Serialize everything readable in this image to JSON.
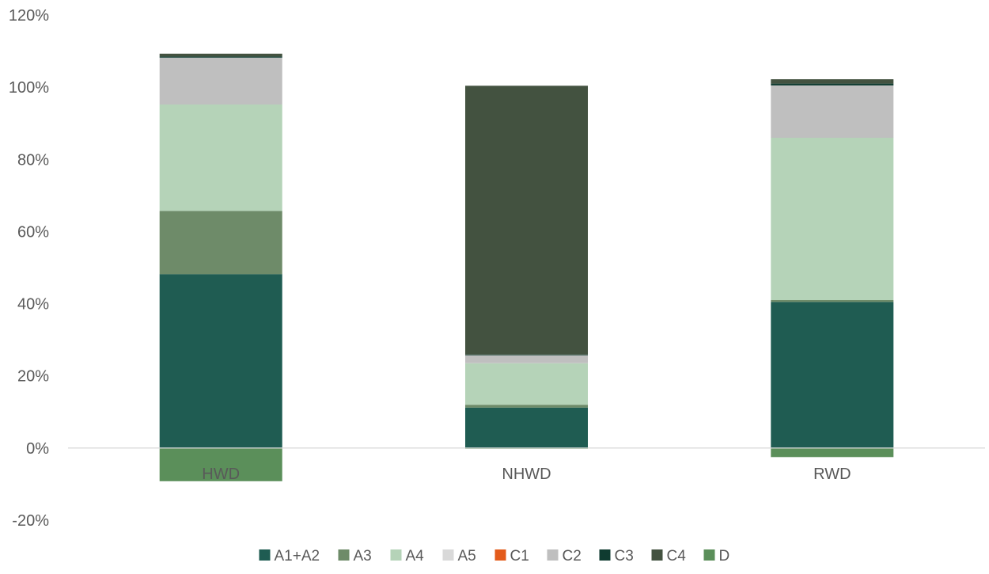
{
  "chart_data": {
    "type": "bar",
    "stacked": true,
    "categories": [
      "HWD",
      "NHWD",
      "RWD"
    ],
    "ylim": [
      -0.2,
      1.2
    ],
    "y_ticks": [
      -0.2,
      0,
      0.2,
      0.4,
      0.6,
      0.8,
      1.0,
      1.2
    ],
    "y_tick_labels": [
      "-20%",
      "0%",
      "20%",
      "40%",
      "60%",
      "80%",
      "100%",
      "120%"
    ],
    "grid": false,
    "legend_position": "bottom",
    "series": [
      {
        "name": "A1+A2",
        "color": "#1f5c52",
        "values": [
          0.482,
          0.112,
          0.405
        ]
      },
      {
        "name": "A3",
        "color": "#6e8b69",
        "values": [
          0.175,
          0.008,
          0.005
        ]
      },
      {
        "name": "A4",
        "color": "#b5d3b8",
        "values": [
          0.295,
          0.115,
          0.45
        ]
      },
      {
        "name": "A5",
        "color": "#d9d9d9",
        "values": [
          0.0,
          0.0,
          0.0
        ]
      },
      {
        "name": "C1",
        "color": "#e35b1b",
        "values": [
          0.0,
          0.0,
          0.0
        ]
      },
      {
        "name": "C2",
        "color": "#bfbfbf",
        "values": [
          0.13,
          0.022,
          0.145
        ]
      },
      {
        "name": "C3",
        "color": "#0f3b30",
        "values": [
          0.003,
          0.002,
          0.005
        ]
      },
      {
        "name": "C4",
        "color": "#435240",
        "values": [
          0.008,
          0.745,
          0.012
        ]
      },
      {
        "name": "D",
        "color": "#5b8f5a",
        "values": [
          -0.092,
          -0.002,
          -0.025
        ]
      }
    ]
  }
}
